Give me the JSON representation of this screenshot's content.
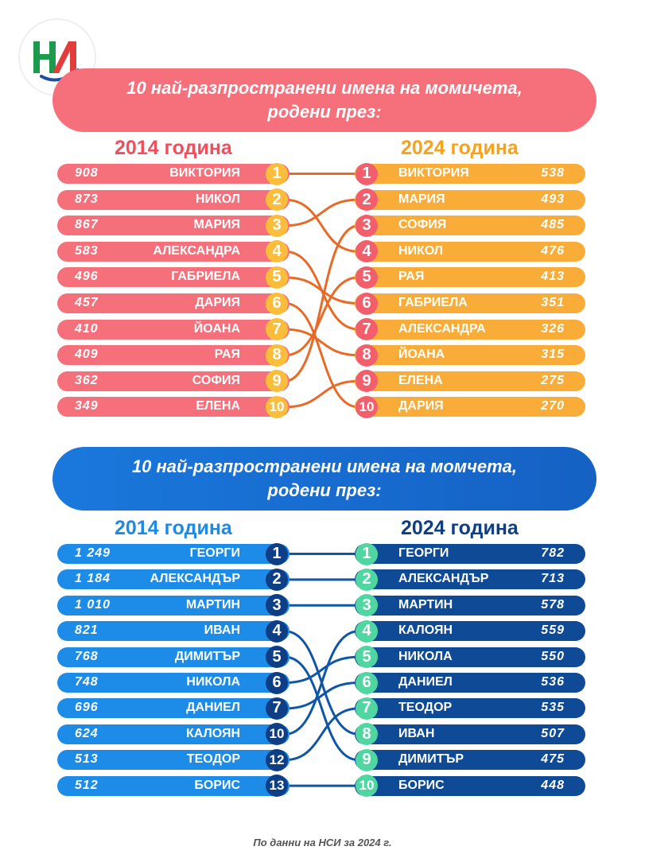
{
  "logo": {
    "text": "НСИ"
  },
  "girls": {
    "banner_line1": "10 най-разпространени имена на момичета,",
    "banner_line2": "родени през:",
    "year_left": "2014 година",
    "year_right": "2024 година",
    "colors": {
      "banner": "#f6707b",
      "left_row": "#f6707b",
      "left_badge": "#fbbd3a",
      "right_row": "#f9ad38",
      "right_badge": "#f25e6b",
      "link": "#e96a26",
      "year_left": "#f04f5e",
      "year_right": "#f7a21b"
    },
    "left": [
      {
        "rank": "1",
        "name": "ВИКТОРИЯ",
        "count": "908"
      },
      {
        "rank": "2",
        "name": "НИКОЛ",
        "count": "873"
      },
      {
        "rank": "3",
        "name": "МАРИЯ",
        "count": "867"
      },
      {
        "rank": "4",
        "name": "АЛЕКСАНДРА",
        "count": "583"
      },
      {
        "rank": "5",
        "name": "ГАБРИЕЛА",
        "count": "496"
      },
      {
        "rank": "6",
        "name": "ДАРИЯ",
        "count": "457"
      },
      {
        "rank": "7",
        "name": "ЙОАНА",
        "count": "410"
      },
      {
        "rank": "8",
        "name": "РАЯ",
        "count": "409"
      },
      {
        "rank": "9",
        "name": "СОФИЯ",
        "count": "362"
      },
      {
        "rank": "10",
        "name": "ЕЛЕНА",
        "count": "349"
      }
    ],
    "right": [
      {
        "rank": "1",
        "name": "ВИКТОРИЯ",
        "count": "538"
      },
      {
        "rank": "2",
        "name": "МАРИЯ",
        "count": "493"
      },
      {
        "rank": "3",
        "name": "СОФИЯ",
        "count": "485"
      },
      {
        "rank": "4",
        "name": "НИКОЛ",
        "count": "476"
      },
      {
        "rank": "5",
        "name": "РАЯ",
        "count": "413"
      },
      {
        "rank": "6",
        "name": "ГАБРИЕЛА",
        "count": "351"
      },
      {
        "rank": "7",
        "name": "АЛЕКСАНДРА",
        "count": "326"
      },
      {
        "rank": "8",
        "name": "ЙОАНА",
        "count": "315"
      },
      {
        "rank": "9",
        "name": "ЕЛЕНА",
        "count": "275"
      },
      {
        "rank": "10",
        "name": "ДАРИЯ",
        "count": "270"
      }
    ]
  },
  "boys": {
    "banner_line1": "10 най-разпространени имена на момчета,",
    "banner_line2": "родени през:",
    "year_left": "2014 година",
    "year_right": "2024 година",
    "colors": {
      "banner": "#1a72d6",
      "left_row": "#1c8ce8",
      "left_badge": "#0e3f86",
      "right_row": "#0e4a96",
      "right_badge": "#4fd6a1",
      "link": "#0f56a8",
      "year_left": "#1d8be6",
      "year_right": "#0d3f86"
    },
    "left": [
      {
        "rank": "1",
        "name": "ГЕОРГИ",
        "count": "1 249"
      },
      {
        "rank": "2",
        "name": "АЛЕКСАНДЪР",
        "count": "1 184"
      },
      {
        "rank": "3",
        "name": "МАРТИН",
        "count": "1 010"
      },
      {
        "rank": "4",
        "name": "ИВАН",
        "count": "821"
      },
      {
        "rank": "5",
        "name": "ДИМИТЪР",
        "count": "768"
      },
      {
        "rank": "6",
        "name": "НИКОЛА",
        "count": "748"
      },
      {
        "rank": "7",
        "name": "ДАНИЕЛ",
        "count": "696"
      },
      {
        "rank": "10",
        "name": "КАЛОЯН",
        "count": "624"
      },
      {
        "rank": "12",
        "name": "ТЕОДОР",
        "count": "513"
      },
      {
        "rank": "13",
        "name": "БОРИС",
        "count": "512"
      }
    ],
    "right": [
      {
        "rank": "1",
        "name": "ГЕОРГИ",
        "count": "782"
      },
      {
        "rank": "2",
        "name": "АЛЕКСАНДЪР",
        "count": "713"
      },
      {
        "rank": "3",
        "name": "МАРТИН",
        "count": "578"
      },
      {
        "rank": "4",
        "name": "КАЛОЯН",
        "count": "559"
      },
      {
        "rank": "5",
        "name": "НИКОЛА",
        "count": "550"
      },
      {
        "rank": "6",
        "name": "ДАНИЕЛ",
        "count": "536"
      },
      {
        "rank": "7",
        "name": "ТЕОДОР",
        "count": "535"
      },
      {
        "rank": "8",
        "name": "ИВАН",
        "count": "507"
      },
      {
        "rank": "9",
        "name": "ДИМИТЪР",
        "count": "475"
      },
      {
        "rank": "10",
        "name": "БОРИС",
        "count": "448"
      }
    ]
  },
  "footer": "По данни на НСИ за 2024 г."
}
